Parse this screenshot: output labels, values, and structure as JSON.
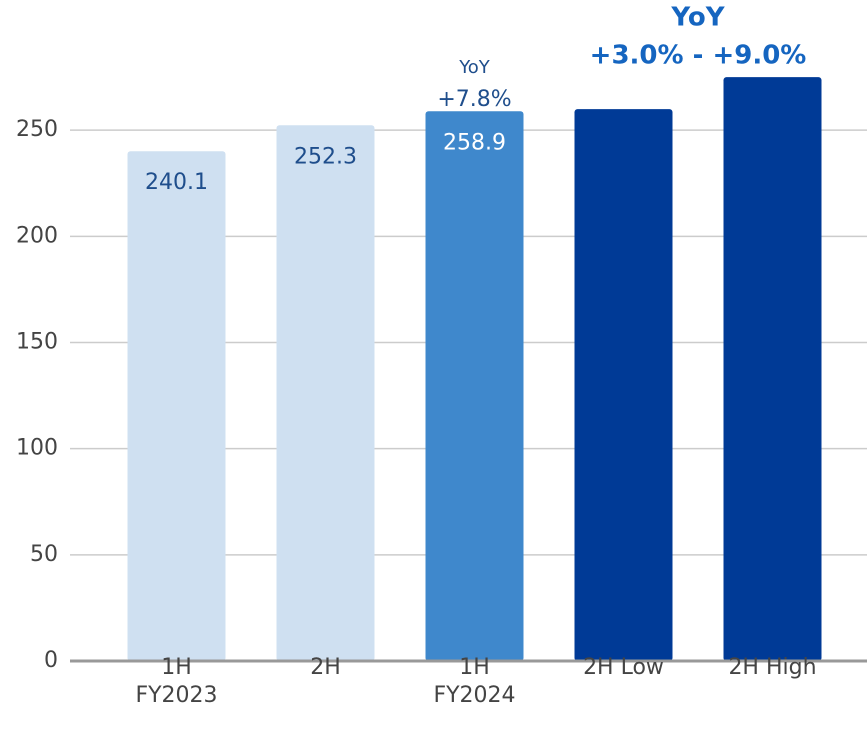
{
  "chart_data": {
    "type": "bar",
    "categories": [
      "1H\nFY2023",
      "2H",
      "1H\nFY2024",
      "2H Low",
      "2H High"
    ],
    "values": [
      240.1,
      252.3,
      258.9,
      259.9,
      275.0
    ],
    "colors": [
      "#cfe0f1",
      "#cfe0f1",
      "#3f88cc",
      "#003a96",
      "#003a96"
    ],
    "data_labels": [
      true,
      true,
      true,
      false,
      false
    ],
    "label_colors": [
      "#1f4e8c",
      "#1f4e8c",
      "#ffffff",
      "#ffffff",
      "#ffffff"
    ],
    "ylim": [
      0,
      300
    ],
    "yticks": [
      0,
      50,
      100,
      150,
      200,
      250
    ],
    "grid": true,
    "annotations": [
      {
        "lines": [
          "YoY",
          "+7.8%"
        ],
        "bar": 2
      },
      {
        "lines": [
          "YoY",
          "+3.0%  -  +9.0%"
        ],
        "bar": 3.5
      }
    ]
  }
}
